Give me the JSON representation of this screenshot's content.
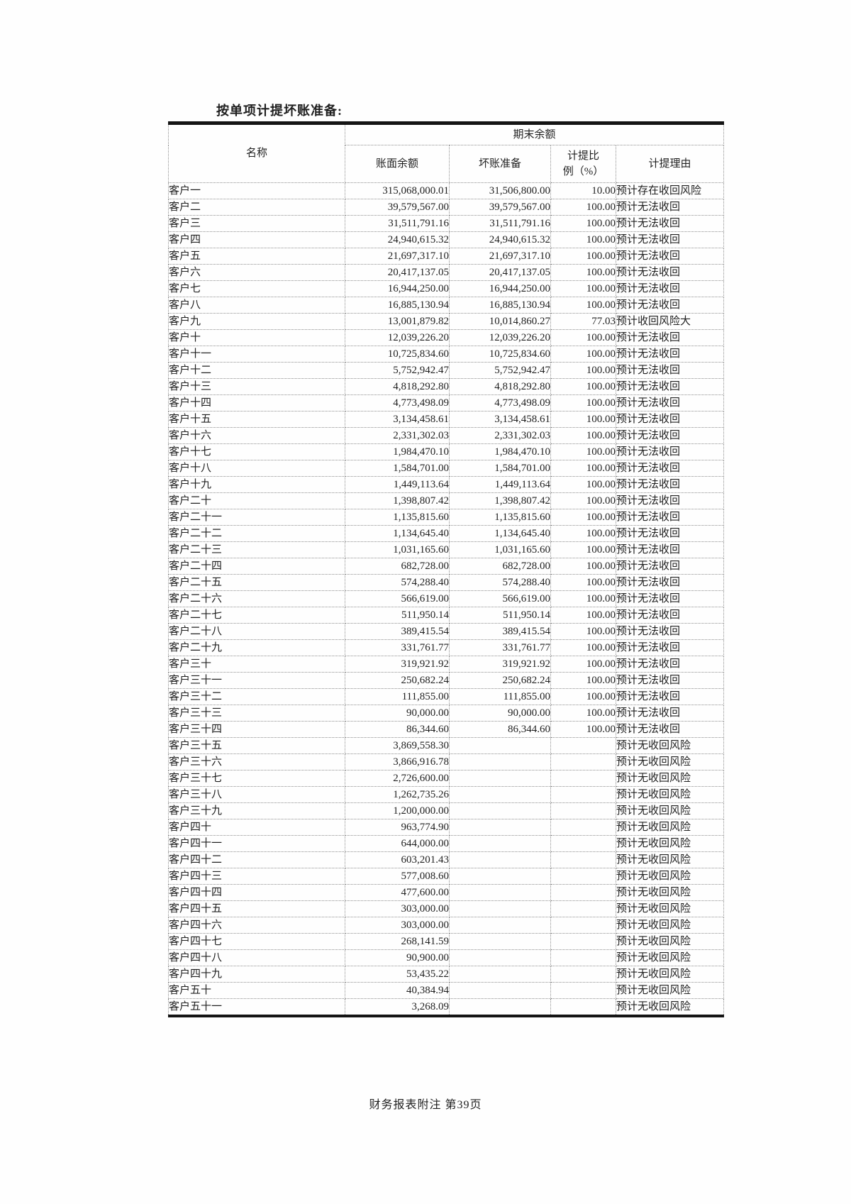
{
  "page": {
    "title": "按单项计提坏账准备:",
    "footer": "财务报表附注  第39页"
  },
  "colors": {
    "ink": "#1f1f1f",
    "thick_border": "#141414",
    "grid_line": "#8f8f8f",
    "paper": "#fefefe"
  },
  "table": {
    "header": {
      "name": "名称",
      "period_group": "期末余额",
      "book_balance": "账面余额",
      "bad_debt_provision": "坏账准备",
      "ratio_line1": "计提比",
      "ratio_line2": "例（%）",
      "reason": "计提理由"
    },
    "rows": [
      {
        "name": "客户一",
        "book": "315,068,000.01",
        "provision": "31,506,800.00",
        "ratio": "10.00",
        "reason": "预计存在收回风险"
      },
      {
        "name": "客户二",
        "book": "39,579,567.00",
        "provision": "39,579,567.00",
        "ratio": "100.00",
        "reason": "预计无法收回"
      },
      {
        "name": "客户三",
        "book": "31,511,791.16",
        "provision": "31,511,791.16",
        "ratio": "100.00",
        "reason": "预计无法收回"
      },
      {
        "name": "客户四",
        "book": "24,940,615.32",
        "provision": "24,940,615.32",
        "ratio": "100.00",
        "reason": "预计无法收回"
      },
      {
        "name": "客户五",
        "book": "21,697,317.10",
        "provision": "21,697,317.10",
        "ratio": "100.00",
        "reason": "预计无法收回"
      },
      {
        "name": "客户六",
        "book": "20,417,137.05",
        "provision": "20,417,137.05",
        "ratio": "100.00",
        "reason": "预计无法收回"
      },
      {
        "name": "客户七",
        "book": "16,944,250.00",
        "provision": "16,944,250.00",
        "ratio": "100.00",
        "reason": "预计无法收回"
      },
      {
        "name": "客户八",
        "book": "16,885,130.94",
        "provision": "16,885,130.94",
        "ratio": "100.00",
        "reason": "预计无法收回"
      },
      {
        "name": "客户九",
        "book": "13,001,879.82",
        "provision": "10,014,860.27",
        "ratio": "77.03",
        "reason": "预计收回风险大"
      },
      {
        "name": "客户十",
        "book": "12,039,226.20",
        "provision": "12,039,226.20",
        "ratio": "100.00",
        "reason": "预计无法收回"
      },
      {
        "name": "客户十一",
        "book": "10,725,834.60",
        "provision": "10,725,834.60",
        "ratio": "100.00",
        "reason": "预计无法收回"
      },
      {
        "name": "客户十二",
        "book": "5,752,942.47",
        "provision": "5,752,942.47",
        "ratio": "100.00",
        "reason": "预计无法收回"
      },
      {
        "name": "客户十三",
        "book": "4,818,292.80",
        "provision": "4,818,292.80",
        "ratio": "100.00",
        "reason": "预计无法收回"
      },
      {
        "name": "客户十四",
        "book": "4,773,498.09",
        "provision": "4,773,498.09",
        "ratio": "100.00",
        "reason": "预计无法收回"
      },
      {
        "name": "客户十五",
        "book": "3,134,458.61",
        "provision": "3,134,458.61",
        "ratio": "100.00",
        "reason": "预计无法收回"
      },
      {
        "name": "客户十六",
        "book": "2,331,302.03",
        "provision": "2,331,302.03",
        "ratio": "100.00",
        "reason": "预计无法收回"
      },
      {
        "name": "客户十七",
        "book": "1,984,470.10",
        "provision": "1,984,470.10",
        "ratio": "100.00",
        "reason": "预计无法收回"
      },
      {
        "name": "客户十八",
        "book": "1,584,701.00",
        "provision": "1,584,701.00",
        "ratio": "100.00",
        "reason": "预计无法收回"
      },
      {
        "name": "客户十九",
        "book": "1,449,113.64",
        "provision": "1,449,113.64",
        "ratio": "100.00",
        "reason": "预计无法收回"
      },
      {
        "name": "客户二十",
        "book": "1,398,807.42",
        "provision": "1,398,807.42",
        "ratio": "100.00",
        "reason": "预计无法收回"
      },
      {
        "name": "客户二十一",
        "book": "1,135,815.60",
        "provision": "1,135,815.60",
        "ratio": "100.00",
        "reason": "预计无法收回"
      },
      {
        "name": "客户二十二",
        "book": "1,134,645.40",
        "provision": "1,134,645.40",
        "ratio": "100.00",
        "reason": "预计无法收回"
      },
      {
        "name": "客户二十三",
        "book": "1,031,165.60",
        "provision": "1,031,165.60",
        "ratio": "100.00",
        "reason": "预计无法收回"
      },
      {
        "name": "客户二十四",
        "book": "682,728.00",
        "provision": "682,728.00",
        "ratio": "100.00",
        "reason": "预计无法收回"
      },
      {
        "name": "客户二十五",
        "book": "574,288.40",
        "provision": "574,288.40",
        "ratio": "100.00",
        "reason": "预计无法收回"
      },
      {
        "name": "客户二十六",
        "book": "566,619.00",
        "provision": "566,619.00",
        "ratio": "100.00",
        "reason": "预计无法收回"
      },
      {
        "name": "客户二十七",
        "book": "511,950.14",
        "provision": "511,950.14",
        "ratio": "100.00",
        "reason": "预计无法收回"
      },
      {
        "name": "客户二十八",
        "book": "389,415.54",
        "provision": "389,415.54",
        "ratio": "100.00",
        "reason": "预计无法收回"
      },
      {
        "name": "客户二十九",
        "book": "331,761.77",
        "provision": "331,761.77",
        "ratio": "100.00",
        "reason": "预计无法收回"
      },
      {
        "name": "客户三十",
        "book": "319,921.92",
        "provision": "319,921.92",
        "ratio": "100.00",
        "reason": "预计无法收回"
      },
      {
        "name": "客户三十一",
        "book": "250,682.24",
        "provision": "250,682.24",
        "ratio": "100.00",
        "reason": "预计无法收回"
      },
      {
        "name": "客户三十二",
        "book": "111,855.00",
        "provision": "111,855.00",
        "ratio": "100.00",
        "reason": "预计无法收回"
      },
      {
        "name": "客户三十三",
        "book": "90,000.00",
        "provision": "90,000.00",
        "ratio": "100.00",
        "reason": "预计无法收回"
      },
      {
        "name": "客户三十四",
        "book": "86,344.60",
        "provision": "86,344.60",
        "ratio": "100.00",
        "reason": "预计无法收回"
      },
      {
        "name": "客户三十五",
        "book": "3,869,558.30",
        "provision": "",
        "ratio": "",
        "reason": "预计无收回风险"
      },
      {
        "name": "客户三十六",
        "book": "3,866,916.78",
        "provision": "",
        "ratio": "",
        "reason": "预计无收回风险"
      },
      {
        "name": "客户三十七",
        "book": "2,726,600.00",
        "provision": "",
        "ratio": "",
        "reason": "预计无收回风险"
      },
      {
        "name": "客户三十八",
        "book": "1,262,735.26",
        "provision": "",
        "ratio": "",
        "reason": "预计无收回风险"
      },
      {
        "name": "客户三十九",
        "book": "1,200,000.00",
        "provision": "",
        "ratio": "",
        "reason": "预计无收回风险"
      },
      {
        "name": "客户四十",
        "book": "963,774.90",
        "provision": "",
        "ratio": "",
        "reason": "预计无收回风险"
      },
      {
        "name": "客户四十一",
        "book": "644,000.00",
        "provision": "",
        "ratio": "",
        "reason": "预计无收回风险"
      },
      {
        "name": "客户四十二",
        "book": "603,201.43",
        "provision": "",
        "ratio": "",
        "reason": "预计无收回风险"
      },
      {
        "name": "客户四十三",
        "book": "577,008.60",
        "provision": "",
        "ratio": "",
        "reason": "预计无收回风险"
      },
      {
        "name": "客户四十四",
        "book": "477,600.00",
        "provision": "",
        "ratio": "",
        "reason": "预计无收回风险"
      },
      {
        "name": "客户四十五",
        "book": "303,000.00",
        "provision": "",
        "ratio": "",
        "reason": "预计无收回风险"
      },
      {
        "name": "客户四十六",
        "book": "303,000.00",
        "provision": "",
        "ratio": "",
        "reason": "预计无收回风险"
      },
      {
        "name": "客户四十七",
        "book": "268,141.59",
        "provision": "",
        "ratio": "",
        "reason": "预计无收回风险"
      },
      {
        "name": "客户四十八",
        "book": "90,900.00",
        "provision": "",
        "ratio": "",
        "reason": "预计无收回风险"
      },
      {
        "name": "客户四十九",
        "book": "53,435.22",
        "provision": "",
        "ratio": "",
        "reason": "预计无收回风险"
      },
      {
        "name": "客户五十",
        "book": "40,384.94",
        "provision": "",
        "ratio": "",
        "reason": "预计无收回风险"
      },
      {
        "name": "客户五十一",
        "book": "3,268.09",
        "provision": "",
        "ratio": "",
        "reason": "预计无收回风险"
      }
    ]
  }
}
